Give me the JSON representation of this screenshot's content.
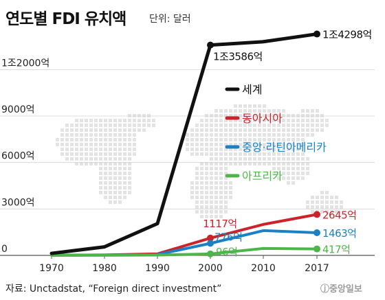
{
  "header": {
    "title": "연도별 FDI 유치액",
    "unit": "단위: 달러"
  },
  "source": "자료: Unctadstat, “Foreign direct investment”",
  "brand": "ⓙ중앙일보",
  "colors": {
    "world": "#111111",
    "east_asia": "#cc2229",
    "latin_america": "#1a82c4",
    "africa": "#4eb54a"
  },
  "chart_data": {
    "type": "line",
    "x": [
      "1970",
      "1980",
      "1990",
      "2000",
      "2010",
      "2017"
    ],
    "x_ticks": [
      "1970",
      "1980",
      "1990",
      "2000",
      "2010",
      "2017"
    ],
    "y_ticks": [
      {
        "value": 0,
        "label": "0"
      },
      {
        "value": 3000,
        "label": "3000억"
      },
      {
        "value": 6000,
        "label": "6000억"
      },
      {
        "value": 9000,
        "label": "9000억"
      },
      {
        "value": 12000,
        "label": "1조2000억"
      }
    ],
    "ylim": [
      0,
      14500
    ],
    "legend_placement": "center-right",
    "series": [
      {
        "name": "세계",
        "color": "#111111",
        "values": [
          130,
          550,
          2050,
          13586,
          13800,
          14298
        ],
        "labels": [
          {
            "index": 3,
            "text": "1조3586억"
          },
          {
            "index": 5,
            "text": "1조4298억"
          }
        ]
      },
      {
        "name": "동아시아",
        "color": "#cc2229",
        "values": [
          10,
          30,
          100,
          1117,
          2000,
          2645
        ],
        "labels": [
          {
            "index": 3,
            "text": "1117억"
          },
          {
            "index": 5,
            "text": "2645억"
          }
        ]
      },
      {
        "name": "중앙·라틴아메리카",
        "color": "#1a82c4",
        "values": [
          10,
          20,
          50,
          776,
          1600,
          1463
        ],
        "labels": [
          {
            "index": 3,
            "text": "776억"
          },
          {
            "index": 5,
            "text": "1463억"
          }
        ]
      },
      {
        "name": "아프리카",
        "color": "#4eb54a",
        "values": [
          5,
          5,
          20,
          96,
          450,
          417
        ],
        "labels": [
          {
            "index": 3,
            "text": "96억"
          },
          {
            "index": 5,
            "text": "417억"
          }
        ]
      }
    ]
  }
}
